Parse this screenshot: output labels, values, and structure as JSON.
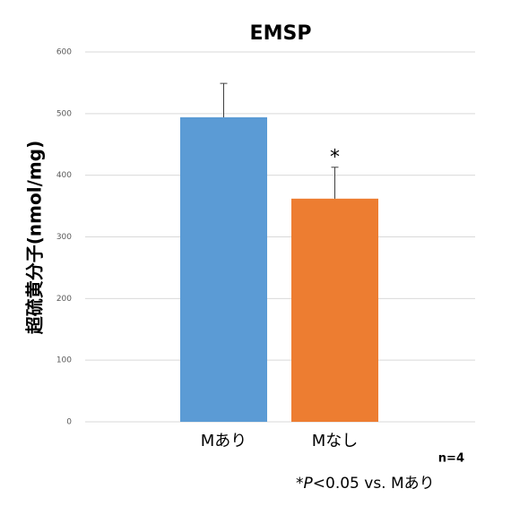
{
  "chart_data": {
    "type": "bar",
    "title": "EMSP",
    "y_label": "超硫黄分子(nmol/mg)",
    "categories": [
      "Mあり",
      "Mなし"
    ],
    "values": [
      494,
      362
    ],
    "errors": [
      55,
      51
    ],
    "colors": [
      "#5b9bd5",
      "#ed7d31"
    ],
    "markers": [
      null,
      "*"
    ],
    "ylim": [
      0,
      600
    ],
    "yticks": [
      0,
      100,
      200,
      300,
      400,
      500,
      600
    ],
    "grid": true,
    "note": "n=4",
    "footnote": [
      "*",
      "P",
      "<0.05 vs. Mあり"
    ]
  }
}
